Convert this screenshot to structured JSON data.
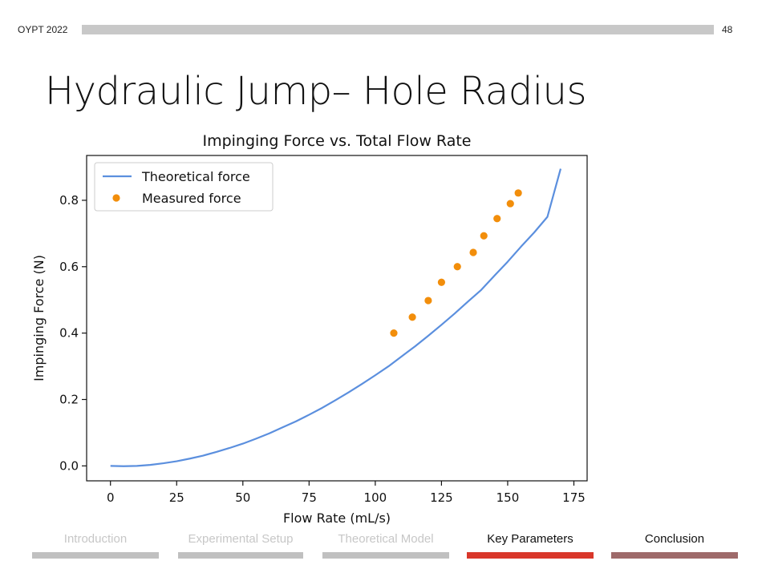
{
  "header": {
    "label": "OYPT 2022",
    "page_number": "48"
  },
  "slide": {
    "title": "Hydraulic Jump– Hole Radius"
  },
  "nav": {
    "items": [
      {
        "label": "Introduction",
        "state": "faded",
        "bar_color": "#c0c0c0"
      },
      {
        "label": "Experimental Setup",
        "state": "faded",
        "bar_color": "#c0c0c0"
      },
      {
        "label": "Theoretical Model",
        "state": "faded",
        "bar_color": "#c0c0c0"
      },
      {
        "label": "Key Parameters",
        "state": "active",
        "bar_color": "#d9372a"
      },
      {
        "label": "Conclusion",
        "state": "next",
        "bar_color": "#9e6a6a"
      }
    ]
  },
  "chart_data": {
    "type": "line",
    "title": "Impinging Force vs. Total Flow Rate",
    "xlabel": "Flow Rate (mL/s)",
    "ylabel": "Impinging Force (N)",
    "xlim": [
      -9,
      180
    ],
    "ylim": [
      -0.045,
      0.935
    ],
    "x_ticks": [
      "0",
      "25",
      "50",
      "75",
      "100",
      "125",
      "150",
      "175"
    ],
    "y_ticks": [
      "0.0",
      "0.2",
      "0.4",
      "0.6",
      "0.8"
    ],
    "legend_position": "top-left",
    "grid": false,
    "series": [
      {
        "name": "Theoretical force",
        "kind": "line",
        "color": "#5b8fde",
        "x": [
          0,
          5,
          10,
          15,
          20,
          25,
          30,
          35,
          40,
          45,
          50,
          55,
          60,
          65,
          70,
          75,
          80,
          85,
          90,
          95,
          100,
          105,
          110,
          115,
          120,
          125,
          130,
          135,
          140,
          145,
          150,
          155,
          160,
          165,
          170
        ],
        "y": [
          0.0,
          -0.001,
          0.0,
          0.003,
          0.008,
          0.014,
          0.022,
          0.031,
          0.042,
          0.054,
          0.067,
          0.082,
          0.098,
          0.116,
          0.134,
          0.154,
          0.175,
          0.198,
          0.222,
          0.247,
          0.273,
          0.3,
          0.33,
          0.36,
          0.392,
          0.425,
          0.459,
          0.495,
          0.53,
          0.573,
          0.615,
          0.66,
          0.703,
          0.75,
          0.895
        ]
      },
      {
        "name": "Measured force",
        "kind": "scatter",
        "color": "#f28e0b",
        "x": [
          107,
          114,
          120,
          125,
          131,
          137,
          141,
          146,
          151,
          154
        ],
        "y": [
          0.4,
          0.448,
          0.498,
          0.553,
          0.6,
          0.643,
          0.693,
          0.745,
          0.79,
          0.822
        ]
      }
    ]
  }
}
